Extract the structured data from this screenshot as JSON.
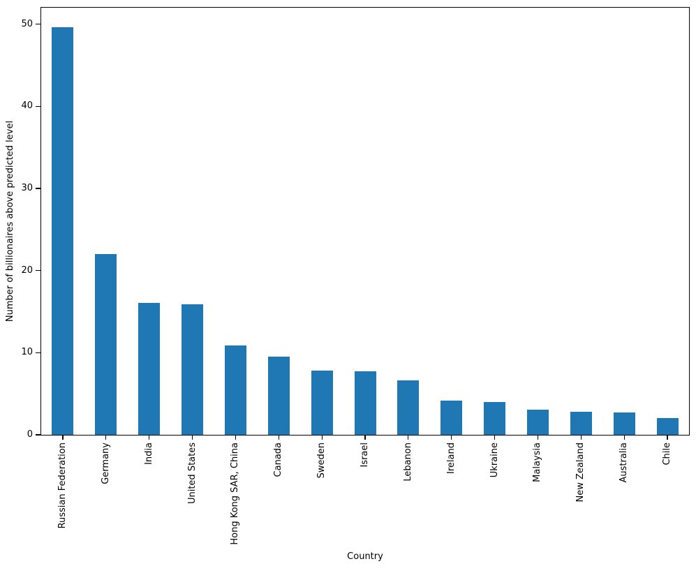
{
  "chart_data": {
    "type": "bar",
    "xlabel": "Country",
    "ylabel": "Number of billionaires above predicted level",
    "categories": [
      "Russian Federation",
      "Germany",
      "India",
      "United States",
      "Hong Kong SAR, China",
      "Canada",
      "Sweden",
      "Israel",
      "Lebanon",
      "Ireland",
      "Ukraine",
      "Malaysia",
      "New Zealand",
      "Australia",
      "Chile"
    ],
    "values": [
      49.6,
      22.0,
      16.1,
      15.9,
      10.9,
      9.5,
      7.8,
      7.7,
      6.6,
      4.2,
      4.0,
      3.1,
      2.8,
      2.7,
      2.0
    ],
    "yticks": [
      0,
      10,
      20,
      30,
      40,
      50
    ],
    "ylim": [
      0,
      52
    ],
    "bar_color": "#1f77b4",
    "grid": false,
    "legend_position": "none"
  }
}
